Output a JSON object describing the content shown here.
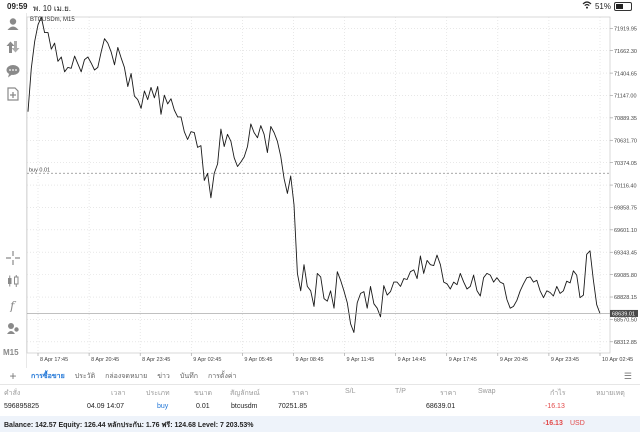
{
  "status_bar": {
    "time": "09:59",
    "date": "พ. 10 เม.ย.",
    "battery": "51%",
    "battery_fraction": 0.51
  },
  "chart": {
    "symbol_title": "BTCUSDm, M15",
    "price_ticks": [
      "71919.95",
      "71662.30",
      "71404.65",
      "71147.00",
      "70889.35",
      "70631.70",
      "70374.05",
      "70116.40",
      "69858.75",
      "69601.10",
      "69343.45",
      "69085.80",
      "68828.15",
      "68570.50",
      "68312.85"
    ],
    "time_ticks": [
      "8 Apr 17:45",
      "8 Apr 20:45",
      "8 Apr 23:45",
      "9 Apr 02:45",
      "9 Apr 05:45",
      "9 Apr 08:45",
      "9 Apr 11:45",
      "9 Apr 14:45",
      "9 Apr 17:45",
      "9 Apr 20:45",
      "9 Apr 23:45",
      "10 Apr 02:45"
    ],
    "order_line_label": "buy 0.01",
    "order_price": 70251.85,
    "current_price_label": "68639.01",
    "current_price": 68639.01,
    "colors": {
      "line": "#1a1a1a",
      "grid": "#d9d9d9",
      "price_tag": "#4a4a4a",
      "accent": "#1e74d6",
      "loss": "#e24a4a"
    }
  },
  "chart_data": {
    "type": "line",
    "title": "BTCUSDm, M15",
    "xlabel": "",
    "ylabel": "",
    "ylim": [
      68184,
      72050
    ],
    "series": [
      {
        "values": [
          70960,
          71460,
          71770,
          71960,
          72050,
          71870,
          71870,
          71680,
          71750,
          71540,
          71590,
          71420,
          71470,
          71460,
          71600,
          71510,
          71420,
          71560,
          71590,
          71520,
          71440,
          71470,
          71650,
          71800,
          71750,
          71650,
          71500,
          71700,
          71580,
          71470,
          71250,
          71400,
          71140,
          71100,
          71000,
          71200,
          71100,
          71240,
          71120,
          71250,
          70930,
          71150,
          71050,
          71110,
          70980,
          70900,
          70900,
          70730,
          70640,
          70730,
          70720,
          70550,
          70570,
          70170,
          70250,
          69970,
          70250,
          70360,
          70760,
          70560,
          70700,
          70620,
          70430,
          70330,
          70380,
          70440,
          70560,
          70820,
          70720,
          70660,
          70800,
          70700,
          70490,
          70790,
          70720,
          70620,
          70450,
          70190,
          70020,
          70220,
          69890,
          69100,
          68900,
          69200,
          68950,
          68900,
          68720,
          69100,
          69060,
          68810,
          68780,
          68900,
          68700,
          69120,
          69020,
          68900,
          68760,
          68520,
          68420,
          68760,
          68870,
          68890,
          68700,
          68950,
          68750,
          68700,
          68600,
          68960,
          68850,
          68890,
          69000,
          69000,
          68950,
          69040,
          69030,
          69120,
          69140,
          69040,
          69300,
          69100,
          69250,
          69200,
          69190,
          69310,
          69200,
          69000,
          68980,
          68920,
          69000,
          68970,
          69100,
          69000,
          68920,
          68950,
          69080,
          68900,
          68840,
          69050,
          69100,
          69080,
          69000,
          69050,
          69000,
          68980,
          68800,
          68700,
          68720,
          68790,
          68900,
          68980,
          69050,
          69060,
          69000,
          69020,
          68900,
          68820,
          68900,
          68880,
          68840,
          68950,
          68870,
          68900,
          69010,
          68990,
          69130,
          69080,
          68820,
          68850,
          69320,
          69360,
          69030,
          68740,
          68639
        ]
      }
    ],
    "reference_lines": [
      {
        "label": "buy 0.01",
        "value": 70251.85
      }
    ],
    "grid": true
  },
  "tabs": {
    "items": [
      "การซื้อขาย",
      "ประวัติ",
      "กล่องจดหมาย",
      "ข่าว",
      "บันทึก",
      "การตั้งค่า"
    ],
    "active_index": 0
  },
  "table": {
    "headers": [
      "คำสั่ง",
      "เวลา",
      "ประเภท",
      "ขนาด",
      "สัญลักษณ์",
      "ราคา",
      "S/L",
      "T/P",
      "ราคา",
      "Swap",
      "กำไร",
      "หมายเหตุ"
    ],
    "row": {
      "order": "596895825",
      "time": "04.09 14:07",
      "type": "buy",
      "volume": "0.01",
      "symbol": "btcusdm",
      "price_open": "70251.85",
      "sl": "",
      "tp": "",
      "price_current": "68639.01",
      "swap": "",
      "profit": "-16.13",
      "comment": ""
    }
  },
  "balance": {
    "summary": "Balance: 142.57 Equity: 126.44 หลักประกัน: 1.76 ฟรี: 124.68 Level: 7 203.53%",
    "profit": "-16.13",
    "currency": "USD"
  }
}
